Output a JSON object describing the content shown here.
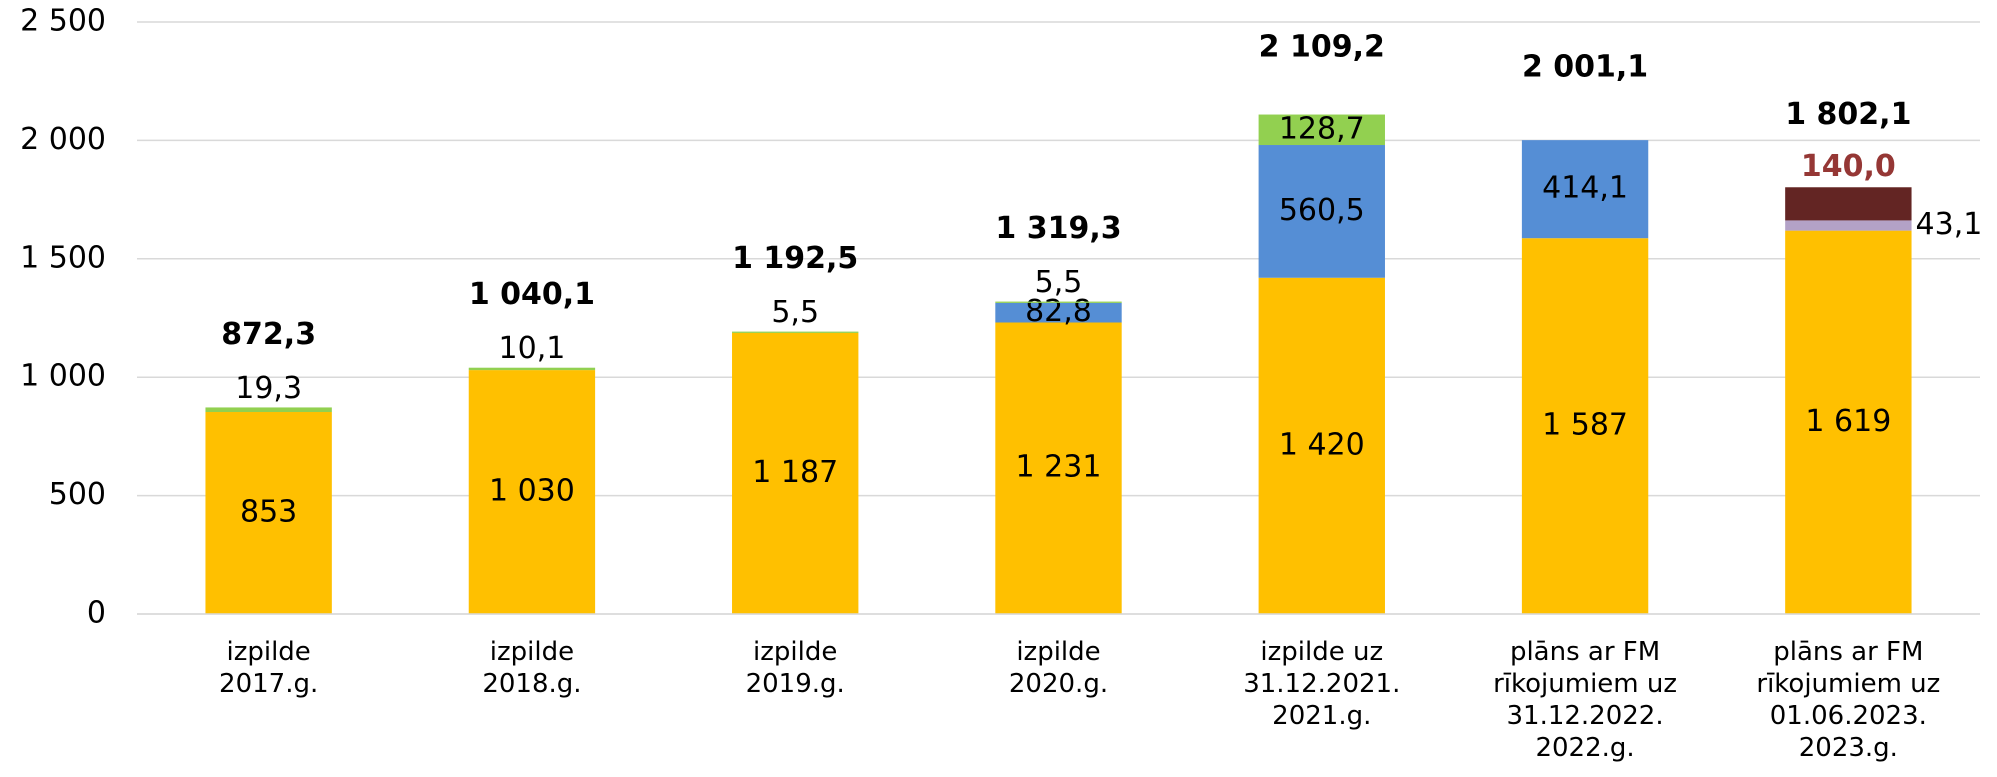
{
  "chart_data": {
    "type": "bar",
    "stacked": true,
    "categories": [
      "izpilde\n2017.g.",
      "izpilde\n2018.g.",
      "izpilde\n2019.g.",
      "izpilde\n2020.g.",
      "izpilde uz\n31.12.2021.\n2021.g.",
      "plāns ar FM\nrīkojumiem uz\n31.12.2022.\n2022.g.",
      "plāns ar FM\nrīkojumiem uz\n01.06.2023.\n2023.g."
    ],
    "series": [
      {
        "color": "#ffc000",
        "values": [
          853,
          1030,
          1187,
          1231,
          1420,
          1587,
          1619
        ],
        "value_labels": [
          "853",
          "1 030",
          "1 187",
          "1 231",
          "1 420",
          "1 587",
          "1 619"
        ]
      },
      {
        "color": "#558ed5",
        "values": [
          null,
          null,
          null,
          82.8,
          560.5,
          414.1,
          null
        ],
        "value_labels": [
          null,
          null,
          null,
          "82,8",
          "560,5",
          "414,1",
          null
        ]
      },
      {
        "color": "#92d050",
        "values": [
          19.3,
          10.1,
          5.5,
          5.5,
          128.7,
          null,
          null
        ],
        "value_labels": [
          "19,3",
          "10,1",
          "5,5",
          "5,5",
          "128,7",
          null,
          null
        ]
      },
      {
        "color": "#b3a2c7",
        "values": [
          null,
          null,
          null,
          null,
          null,
          null,
          43.1
        ],
        "value_labels": [
          null,
          null,
          null,
          null,
          null,
          null,
          "43,1"
        ]
      },
      {
        "color": "#632523",
        "label_color": "#953735",
        "values": [
          null,
          null,
          null,
          null,
          null,
          null,
          140.0
        ],
        "value_labels": [
          null,
          null,
          null,
          null,
          null,
          null,
          "140,0"
        ]
      }
    ],
    "totals": {
      "values": [
        872.3,
        1040.1,
        1192.5,
        1319.3,
        2109.2,
        2001.1,
        1802.1
      ],
      "value_labels": [
        "872,3",
        "1 040,1",
        "1 192,5",
        "1 319,3",
        "2 109,2",
        "2 001,1",
        "1 802,1"
      ]
    },
    "ylim": [
      0,
      2500
    ],
    "yticks": [
      0,
      500,
      {
        "value": 1000,
        "label": "1 000"
      },
      {
        "value": 1500,
        "label": "1 500"
      },
      {
        "value": 2000,
        "label": "2 000"
      },
      {
        "value": 2500,
        "label": "2 500"
      }
    ],
    "grid": true
  }
}
